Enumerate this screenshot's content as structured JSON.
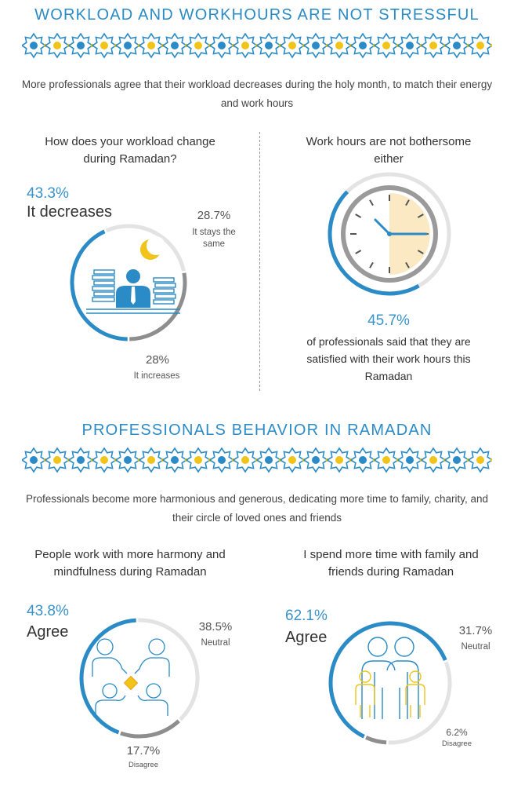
{
  "section1": {
    "title": "WORKLOAD AND WORKHOURS ARE NOT STRESSFUL",
    "subtitle": "More professionals agree that their workload decreases during the holy month, to match their energy and work hours",
    "left": {
      "question": "How does your workload change during Ramadan?",
      "decreases_pct": "43.3%",
      "decreases_label": "It decreases",
      "same_pct": "28.7%",
      "same_label": "It stays the same",
      "increases_pct": "28%",
      "increases_label": "It increases"
    },
    "right": {
      "question": "Work hours are not bothersome either",
      "pct": "45.7%",
      "caption": "of professionals said that they are satisfied with their work hours this Ramadan"
    }
  },
  "section2": {
    "title": "PROFESSIONALS BEHAVIOR IN RAMADAN",
    "subtitle": "Professionals become more harmonious and generous, dedicating more time to family, charity, and their circle of loved ones and friends",
    "left": {
      "question": "People work with more harmony and mindfulness during Ramadan",
      "agree_pct": "43.8%",
      "agree_label": "Agree",
      "neutral_pct": "38.5%",
      "neutral_label": "Neutral",
      "disagree_pct": "17.7%",
      "disagree_label": "Disagree"
    },
    "right": {
      "question": "I spend more time with family and friends during Ramadan",
      "agree_pct": "62.1%",
      "agree_label": "Agree",
      "neutral_pct": "31.7%",
      "neutral_label": "Neutral",
      "disagree_pct": "6.2%",
      "disagree_label": "Disagree"
    }
  },
  "colors": {
    "blue": "#2b8bc6",
    "gray": "#8e8e8e",
    "light_gray": "#e3e3e3",
    "cream": "#fbe9c4",
    "gold": "#f0c419"
  },
  "icons": [
    "star-ornament-border",
    "crescent-moon-icon",
    "office-worker-icon",
    "clock-icon",
    "team-meeting-icon",
    "family-icon"
  ],
  "chart_data": [
    {
      "type": "pie",
      "title": "How does your workload change during Ramadan?",
      "categories": [
        "It decreases",
        "It stays the same",
        "It increases"
      ],
      "values": [
        43.3,
        28.7,
        28
      ]
    },
    {
      "type": "pie",
      "title": "Work hours are not bothersome either",
      "categories": [
        "satisfied with their work hours"
      ],
      "values": [
        45.7
      ]
    },
    {
      "type": "pie",
      "title": "People work with more harmony and mindfulness during Ramadan",
      "categories": [
        "Agree",
        "Neutral",
        "Disagree"
      ],
      "values": [
        43.8,
        38.5,
        17.7
      ]
    },
    {
      "type": "pie",
      "title": "I spend more time with family and friends during Ramadan",
      "categories": [
        "Agree",
        "Neutral",
        "Disagree"
      ],
      "values": [
        62.1,
        31.7,
        6.2
      ]
    }
  ]
}
